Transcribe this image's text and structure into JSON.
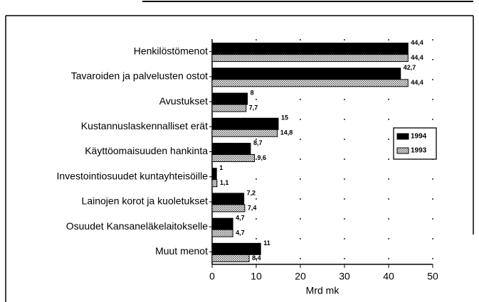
{
  "chart_data": {
    "type": "hbar",
    "categories": [
      "Henkilöstömenot",
      "Tavaroiden ja palvelusten ostot",
      "Avustukset",
      "Kustannuslaskennalliset erät",
      "Käyttöomaisuuden hankinta",
      "Investointiosuudet kuntayhteisöille",
      "Lainojen korot ja kuoletukset",
      "Osuudet Kansaneläkelaitokselle",
      "Muut menot"
    ],
    "series": [
      {
        "name": "1994",
        "color": "#000000",
        "values": [
          44.4,
          42.7,
          8,
          15,
          8.7,
          1,
          7.2,
          4.7,
          11
        ],
        "value_labels": [
          "44,4",
          "42,7",
          "8",
          "15",
          "8,7",
          "1",
          "7,2",
          "4,7",
          "11"
        ]
      },
      {
        "name": "1993",
        "color": "#b8b8b8",
        "values": [
          44.4,
          44.4,
          7.7,
          14.8,
          9.6,
          1.1,
          7.4,
          4.7,
          8.4
        ],
        "value_labels": [
          "44,4",
          "44,4",
          "7,7",
          "14,8",
          "9,6",
          "1,1",
          "7,4",
          "4,7",
          "8,4"
        ]
      }
    ],
    "xlabel": "Mrd mk",
    "xlim": [
      0,
      50
    ],
    "xticks": [
      0,
      10,
      20,
      30,
      40,
      50
    ],
    "grid": true,
    "legend": "right"
  }
}
